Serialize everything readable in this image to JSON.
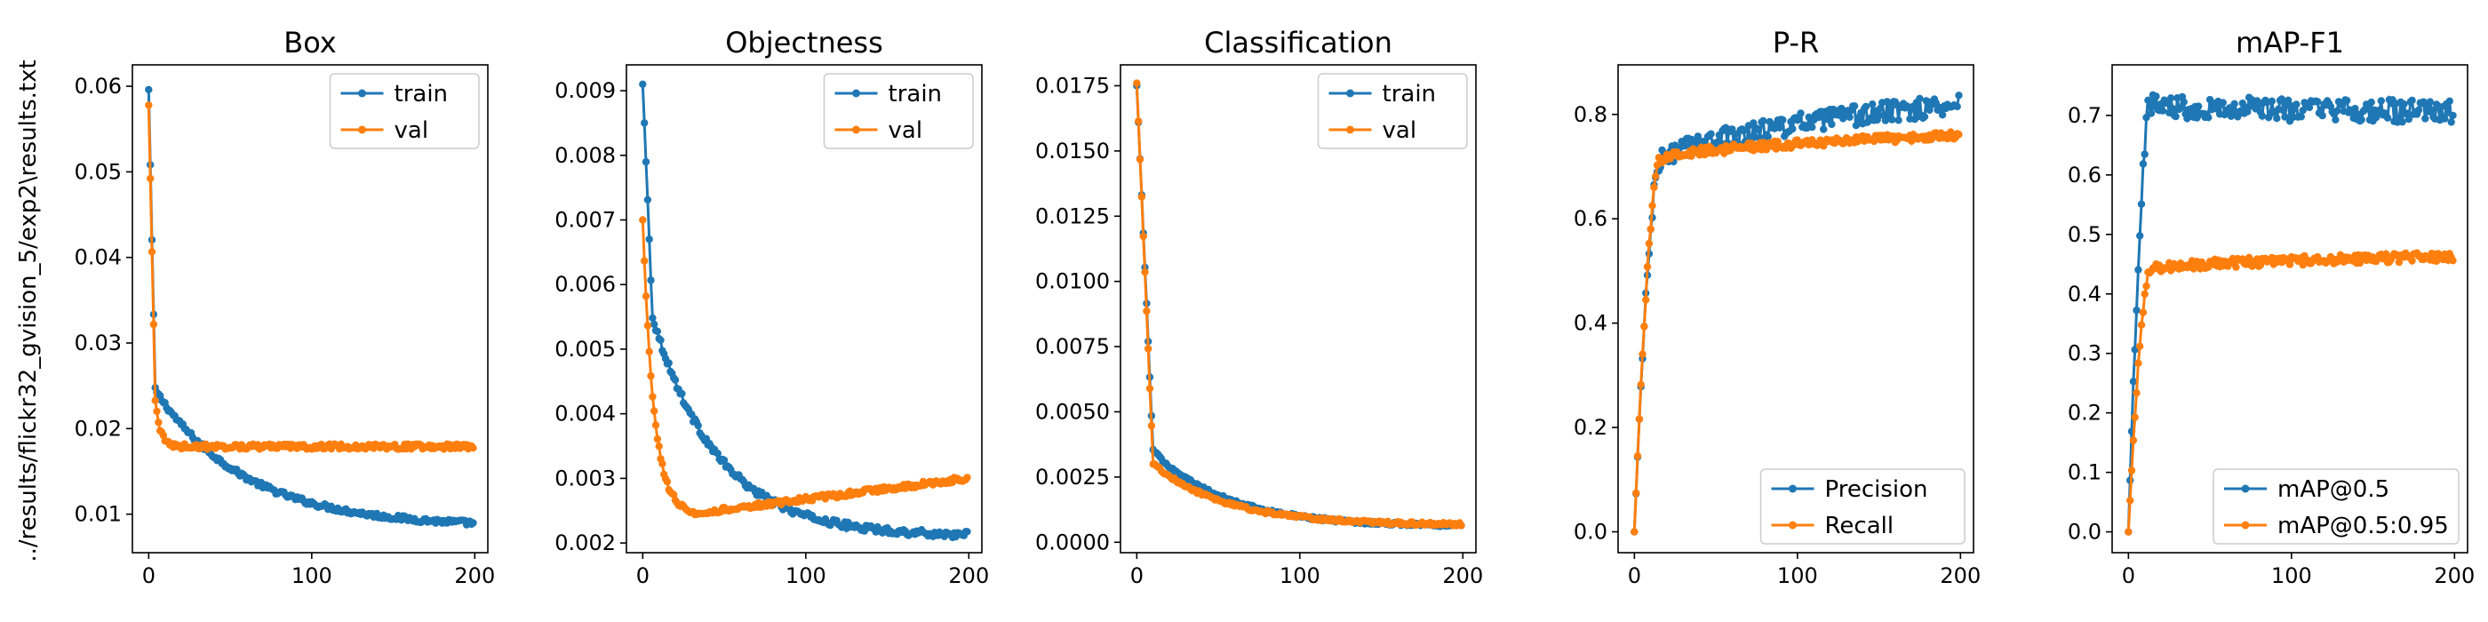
{
  "figure": {
    "ylabel": "../results/flickr32_gvision_5/exp2\\results.txt"
  },
  "colors": {
    "blue": "#1f77b4",
    "orange": "#ff7f0e"
  },
  "chart_data": [
    {
      "type": "line",
      "title": "Box",
      "xlim": [
        -10,
        208
      ],
      "ylim": [
        0.0055,
        0.0625
      ],
      "xticks": [
        0,
        100,
        200
      ],
      "yticks": [
        0.01,
        0.02,
        0.03,
        0.04,
        0.05,
        0.06
      ],
      "ytick_labels": [
        "0.01",
        "0.02",
        "0.03",
        "0.04",
        "0.05",
        "0.06"
      ],
      "legend": "top-right",
      "series": [
        {
          "name": "train",
          "color": "#1f77b4",
          "shape": "decay",
          "start": 0.0596,
          "mid": 0.0245,
          "knee": 4,
          "end": 0.0085,
          "tau": 55,
          "noise": 0.0003
        },
        {
          "name": "val",
          "color": "#ff7f0e",
          "shape": "decay",
          "start": 0.0578,
          "mid": 0.0235,
          "knee": 4,
          "end": 0.0179,
          "tau": 3,
          "noise": 0.0003
        }
      ]
    },
    {
      "type": "line",
      "title": "Objectness",
      "xlim": [
        -10,
        208
      ],
      "ylim": [
        0.00185,
        0.0094
      ],
      "xticks": [
        0,
        100,
        200
      ],
      "yticks": [
        0.002,
        0.003,
        0.004,
        0.005,
        0.006,
        0.007,
        0.008,
        0.009
      ],
      "ytick_labels": [
        "0.002",
        "0.003",
        "0.004",
        "0.005",
        "0.006",
        "0.007",
        "0.008",
        "0.009"
      ],
      "legend": "top-right",
      "series": [
        {
          "name": "train",
          "color": "#1f77b4",
          "shape": "decay",
          "start": 0.0091,
          "mid": 0.0055,
          "knee": 6,
          "end": 0.0021,
          "tau": 40,
          "noise": 5e-05
        },
        {
          "name": "val",
          "color": "#ff7f0e",
          "shape": "dip",
          "start": 0.007,
          "min": 0.00245,
          "minx": 30,
          "end": 0.003,
          "noise": 4e-05
        }
      ]
    },
    {
      "type": "line",
      "title": "Classification",
      "xlim": [
        -10,
        208
      ],
      "ylim": [
        -0.0004,
        0.0183
      ],
      "xticks": [
        0,
        100,
        200
      ],
      "yticks": [
        0.0,
        0.0025,
        0.005,
        0.0075,
        0.01,
        0.0125,
        0.015,
        0.0175
      ],
      "ytick_labels": [
        "0.0000",
        "0.0025",
        "0.0050",
        "0.0075",
        "0.0100",
        "0.0125",
        "0.0150",
        "0.0175"
      ],
      "legend": "top-right",
      "series": [
        {
          "name": "train",
          "color": "#1f77b4",
          "shape": "decay",
          "start": 0.0175,
          "mid": 0.0035,
          "knee": 10,
          "end": 0.0006,
          "tau": 45,
          "noise": 6e-05
        },
        {
          "name": "val",
          "color": "#ff7f0e",
          "shape": "decay",
          "start": 0.0176,
          "mid": 0.003,
          "knee": 10,
          "end": 0.00065,
          "tau": 45,
          "noise": 6e-05
        }
      ]
    },
    {
      "type": "line",
      "title": "P-R",
      "xlim": [
        -10,
        208
      ],
      "ylim": [
        -0.04,
        0.895
      ],
      "xticks": [
        0,
        100,
        200
      ],
      "yticks": [
        0.0,
        0.2,
        0.4,
        0.6,
        0.8
      ],
      "ytick_labels": [
        "0.0",
        "0.2",
        "0.4",
        "0.6",
        "0.8"
      ],
      "legend": "bottom-right",
      "series": [
        {
          "name": "Precision",
          "color": "#1f77b4",
          "shape": "rise",
          "start": 0.0,
          "knee": 15,
          "plateau": 0.7,
          "end": 0.82,
          "noise": 0.02
        },
        {
          "name": "Recall",
          "color": "#ff7f0e",
          "shape": "rise",
          "start": 0.0,
          "knee": 15,
          "plateau": 0.71,
          "end": 0.76,
          "noise": 0.008
        }
      ]
    },
    {
      "type": "line",
      "title": "mAP-F1",
      "xlim": [
        -10,
        208
      ],
      "ylim": [
        -0.035,
        0.785
      ],
      "xticks": [
        0,
        100,
        200
      ],
      "yticks": [
        0.0,
        0.1,
        0.2,
        0.3,
        0.4,
        0.5,
        0.6,
        0.7
      ],
      "ytick_labels": [
        "0.0",
        "0.1",
        "0.2",
        "0.3",
        "0.4",
        "0.5",
        "0.6",
        "0.7"
      ],
      "legend": "bottom-right",
      "series": [
        {
          "name": "mAP@0.5",
          "color": "#1f77b4",
          "shape": "rise",
          "start": 0.0,
          "knee": 13,
          "plateau": 0.72,
          "end": 0.705,
          "noise": 0.02
        },
        {
          "name": "mAP@0.5:0.95",
          "color": "#ff7f0e",
          "shape": "rise",
          "start": 0.0,
          "knee": 13,
          "plateau": 0.44,
          "end": 0.463,
          "noise": 0.008
        }
      ]
    }
  ]
}
